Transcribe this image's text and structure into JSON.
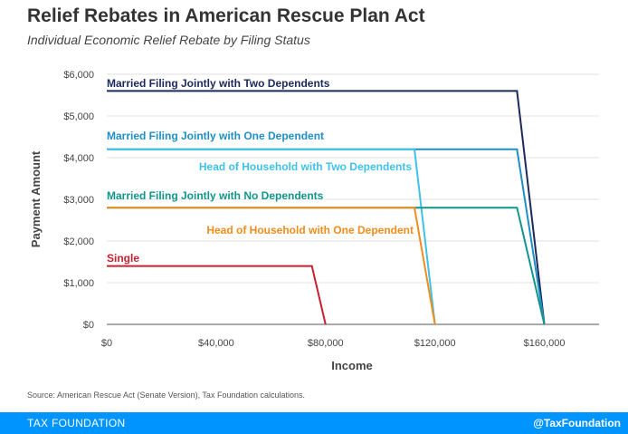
{
  "header": {
    "title": "Relief Rebates in American Rescue Plan Act",
    "subtitle": "Individual Economic Relief Rebate by Filing Status"
  },
  "source": "Source: American Rescue Act (Senate Version), Tax Foundation calculations.",
  "footer": {
    "brand": "TAX FOUNDATION",
    "handle": "@TaxFoundation"
  },
  "chart_data": {
    "type": "line",
    "xlabel": "Income",
    "ylabel": "Payment Amount",
    "xlim": [
      0,
      180000
    ],
    "ylim": [
      0,
      6000
    ],
    "x_ticks": [
      {
        "value": 0,
        "label": "$0"
      },
      {
        "value": 40000,
        "label": "$40,000"
      },
      {
        "value": 80000,
        "label": "$80,000"
      },
      {
        "value": 120000,
        "label": "$120,000"
      },
      {
        "value": 160000,
        "label": "$160,000"
      }
    ],
    "y_ticks": [
      {
        "value": 0,
        "label": "$0"
      },
      {
        "value": 1000,
        "label": "$1,000"
      },
      {
        "value": 2000,
        "label": "$2,000"
      },
      {
        "value": 3000,
        "label": "$3,000"
      },
      {
        "value": 4000,
        "label": "$4,000"
      },
      {
        "value": 5000,
        "label": "$5,000"
      },
      {
        "value": 6000,
        "label": "$6,000"
      }
    ],
    "grid": "horizontal",
    "series": [
      {
        "name": "Married Filing Jointly with Two Dependents",
        "color": "#1b2a5c",
        "points": [
          [
            0,
            5600
          ],
          [
            150000,
            5600
          ],
          [
            160000,
            0
          ]
        ]
      },
      {
        "name": "Married Filing Jointly with One Dependent",
        "color": "#1f8fc4",
        "points": [
          [
            0,
            4200
          ],
          [
            150000,
            4200
          ],
          [
            160000,
            0
          ]
        ]
      },
      {
        "name": "Head of Household with Two Dependents",
        "color": "#3fc1ea",
        "points": [
          [
            0,
            4200
          ],
          [
            112500,
            4200
          ],
          [
            120000,
            0
          ]
        ]
      },
      {
        "name": "Married Filing Jointly with No Dependents",
        "color": "#11968a",
        "points": [
          [
            0,
            2800
          ],
          [
            150000,
            2800
          ],
          [
            160000,
            0
          ]
        ]
      },
      {
        "name": "Head of Household with One Dependent",
        "color": "#f08c1c",
        "points": [
          [
            0,
            2800
          ],
          [
            112500,
            2800
          ],
          [
            120000,
            0
          ]
        ]
      },
      {
        "name": "Single",
        "color": "#c8202f",
        "points": [
          [
            0,
            1400
          ],
          [
            75000,
            1400
          ],
          [
            80000,
            0
          ]
        ]
      }
    ]
  }
}
